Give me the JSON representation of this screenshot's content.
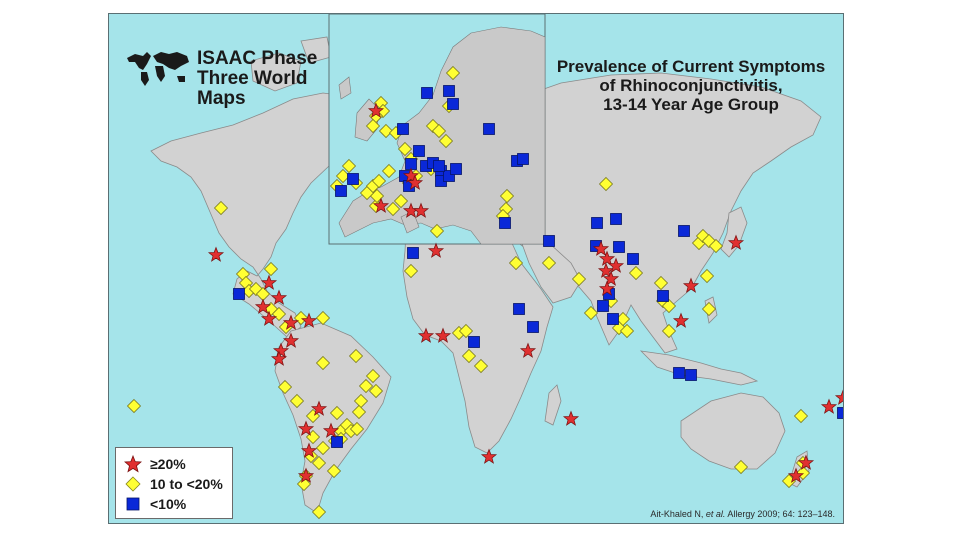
{
  "header": {
    "logo_title_lines": [
      "ISAAC Phase",
      "Three World",
      "Maps"
    ],
    "title_lines": [
      "Prevalence of Current Symptoms",
      "of Rhinoconjunctivitis,",
      "13-14 Year Age Group"
    ]
  },
  "legend": {
    "items": [
      {
        "label": "≥20%",
        "symbol": "star-icon",
        "color": "#e03030"
      },
      {
        "label": "10 to <20%",
        "symbol": "diamond-icon",
        "color": "#ffff33"
      },
      {
        "label": "<10%",
        "symbol": "square-icon",
        "color": "#0a28d8"
      }
    ]
  },
  "citation": {
    "prefix": "Ait-Khaled N, ",
    "italic": "et al.",
    "suffix": " Allergy 2009; 64: 123–148."
  },
  "colors": {
    "ocean": "#a5e4ea",
    "land": "#d2d2d2",
    "star": "#e03030",
    "diamond": "#ffff33",
    "square": "#0a28d8"
  },
  "markers": {
    "star": [
      [
        215,
        254
      ],
      [
        268,
        282
      ],
      [
        278,
        297
      ],
      [
        262,
        306
      ],
      [
        268,
        318
      ],
      [
        290,
        322
      ],
      [
        308,
        320
      ],
      [
        290,
        340
      ],
      [
        280,
        350
      ],
      [
        278,
        358
      ],
      [
        318,
        408
      ],
      [
        305,
        428
      ],
      [
        308,
        450
      ],
      [
        305,
        475
      ],
      [
        330,
        430
      ],
      [
        380,
        205
      ],
      [
        410,
        210
      ],
      [
        420,
        210
      ],
      [
        410,
        175
      ],
      [
        414,
        182
      ],
      [
        375,
        110
      ],
      [
        425,
        335
      ],
      [
        442,
        335
      ],
      [
        435,
        250
      ],
      [
        527,
        350
      ],
      [
        488,
        456
      ],
      [
        570,
        418
      ],
      [
        600,
        248
      ],
      [
        606,
        258
      ],
      [
        605,
        270
      ],
      [
        610,
        278
      ],
      [
        606,
        288
      ],
      [
        615,
        265
      ],
      [
        680,
        320
      ],
      [
        690,
        285
      ],
      [
        735,
        242
      ],
      [
        842,
        397
      ],
      [
        828,
        406
      ],
      [
        805,
        462
      ],
      [
        795,
        475
      ]
    ],
    "diamond": [
      [
        220,
        207
      ],
      [
        242,
        273
      ],
      [
        245,
        282
      ],
      [
        248,
        290
      ],
      [
        255,
        288
      ],
      [
        262,
        293
      ],
      [
        270,
        308
      ],
      [
        278,
        313
      ],
      [
        285,
        326
      ],
      [
        300,
        317
      ],
      [
        322,
        317
      ],
      [
        322,
        362
      ],
      [
        284,
        386
      ],
      [
        296,
        400
      ],
      [
        312,
        415
      ],
      [
        322,
        447
      ],
      [
        310,
        455
      ],
      [
        318,
        462
      ],
      [
        305,
        475
      ],
      [
        303,
        483
      ],
      [
        318,
        511
      ],
      [
        336,
        412
      ],
      [
        340,
        430
      ],
      [
        346,
        424
      ],
      [
        340,
        438
      ],
      [
        350,
        430
      ],
      [
        356,
        428
      ],
      [
        360,
        400
      ],
      [
        365,
        385
      ],
      [
        372,
        375
      ],
      [
        375,
        390
      ],
      [
        333,
        470
      ],
      [
        133,
        405
      ],
      [
        270,
        268
      ],
      [
        458,
        332
      ],
      [
        465,
        330
      ],
      [
        468,
        355
      ],
      [
        480,
        365
      ],
      [
        515,
        262
      ],
      [
        548,
        262
      ],
      [
        578,
        278
      ],
      [
        590,
        312
      ],
      [
        610,
        300
      ],
      [
        618,
        327
      ],
      [
        622,
        318
      ],
      [
        626,
        330
      ],
      [
        605,
        183
      ],
      [
        635,
        272
      ],
      [
        660,
        282
      ],
      [
        662,
        300
      ],
      [
        668,
        330
      ],
      [
        668,
        305
      ],
      [
        698,
        242
      ],
      [
        702,
        235
      ],
      [
        708,
        240
      ],
      [
        715,
        245
      ],
      [
        706,
        275
      ],
      [
        708,
        308
      ],
      [
        506,
        195
      ],
      [
        505,
        208
      ],
      [
        502,
        215
      ],
      [
        410,
        270
      ],
      [
        355,
        355
      ],
      [
        312,
        436
      ],
      [
        334,
        440
      ],
      [
        358,
        411
      ],
      [
        375,
        205
      ],
      [
        376,
        195
      ],
      [
        392,
        208
      ],
      [
        348,
        165
      ],
      [
        342,
        175
      ],
      [
        336,
        185
      ],
      [
        355,
        182
      ],
      [
        366,
        192
      ],
      [
        372,
        185
      ],
      [
        378,
        180
      ],
      [
        388,
        170
      ],
      [
        408,
        182
      ],
      [
        400,
        200
      ],
      [
        415,
        175
      ],
      [
        432,
        125
      ],
      [
        438,
        130
      ],
      [
        452,
        72
      ],
      [
        448,
        105
      ],
      [
        380,
        102
      ],
      [
        382,
        110
      ],
      [
        375,
        115
      ],
      [
        372,
        125
      ],
      [
        385,
        130
      ],
      [
        395,
        132
      ],
      [
        404,
        148
      ],
      [
        410,
        158
      ],
      [
        430,
        168
      ],
      [
        445,
        140
      ],
      [
        436,
        230
      ],
      [
        800,
        415
      ],
      [
        740,
        466
      ],
      [
        788,
        480
      ],
      [
        802,
        462
      ],
      [
        802,
        472
      ]
    ],
    "square": [
      [
        448,
        90
      ],
      [
        452,
        103
      ],
      [
        426,
        92
      ],
      [
        488,
        128
      ],
      [
        418,
        150
      ],
      [
        425,
        165
      ],
      [
        432,
        162
      ],
      [
        440,
        170
      ],
      [
        440,
        180
      ],
      [
        448,
        175
      ],
      [
        438,
        165
      ],
      [
        455,
        168
      ],
      [
        410,
        163
      ],
      [
        402,
        128
      ],
      [
        516,
        160
      ],
      [
        522,
        158
      ],
      [
        352,
        178
      ],
      [
        340,
        190
      ],
      [
        404,
        175
      ],
      [
        408,
        185
      ],
      [
        504,
        222
      ],
      [
        548,
        240
      ],
      [
        596,
        222
      ],
      [
        615,
        218
      ],
      [
        595,
        245
      ],
      [
        618,
        246
      ],
      [
        632,
        258
      ],
      [
        608,
        293
      ],
      [
        612,
        318
      ],
      [
        662,
        295
      ],
      [
        678,
        372
      ],
      [
        690,
        374
      ],
      [
        518,
        308
      ],
      [
        532,
        326
      ],
      [
        473,
        341
      ],
      [
        412,
        252
      ],
      [
        238,
        293
      ],
      [
        336,
        441
      ],
      [
        842,
        412
      ],
      [
        683,
        230
      ],
      [
        602,
        305
      ]
    ]
  }
}
